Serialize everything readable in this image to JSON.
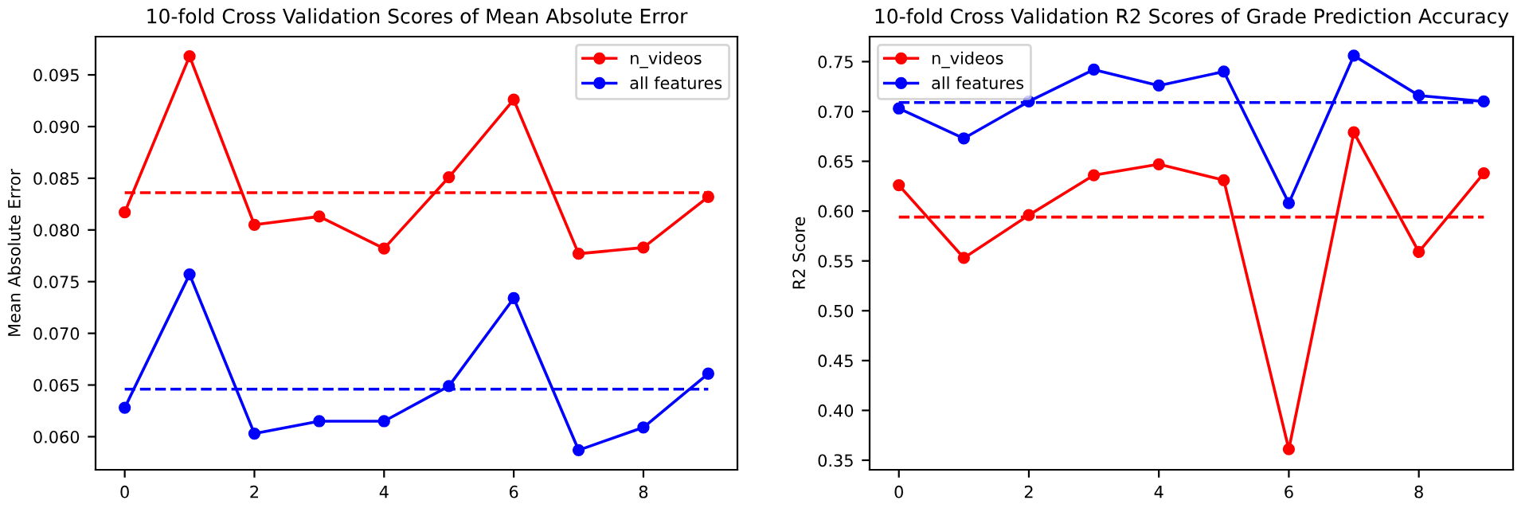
{
  "chart_data": [
    {
      "type": "line",
      "title": "10-fold Cross Validation Scores of Mean Absolute Error",
      "ylabel": "Mean Absolute Error",
      "x": [
        0,
        1,
        2,
        3,
        4,
        5,
        6,
        7,
        8,
        9
      ],
      "xlim": [
        -0.45,
        9.45
      ],
      "xticks": [
        0,
        2,
        4,
        6,
        8
      ],
      "ylim": [
        0.0568,
        0.0987
      ],
      "yticks": [
        {
          "value": 0.06,
          "label": "0.060"
        },
        {
          "value": 0.065,
          "label": "0.065"
        },
        {
          "value": 0.07,
          "label": "0.070"
        },
        {
          "value": 0.075,
          "label": "0.075"
        },
        {
          "value": 0.08,
          "label": "0.080"
        },
        {
          "value": 0.085,
          "label": "0.085"
        },
        {
          "value": 0.09,
          "label": "0.090"
        },
        {
          "value": 0.095,
          "label": "0.095"
        }
      ],
      "marker": "circle",
      "line_style": "solid",
      "legend": "top right",
      "grid": false,
      "series": [
        {
          "name": "n_videos",
          "color": "#ff0000",
          "values": [
            0.0817,
            0.0968,
            0.0805,
            0.0813,
            0.0782,
            0.0851,
            0.0926,
            0.0777,
            0.0783,
            0.0832
          ]
        },
        {
          "name": "all features",
          "color": "#0000ff",
          "values": [
            0.0628,
            0.0757,
            0.0603,
            0.0615,
            0.0615,
            0.0649,
            0.0734,
            0.0587,
            0.0609,
            0.0661
          ]
        }
      ],
      "ref_lines": [
        {
          "axis": "y",
          "value": 0.0836,
          "color": "#ff0000",
          "line_style": "dashed"
        },
        {
          "axis": "y",
          "value": 0.0646,
          "color": "#0000ff",
          "line_style": "dashed"
        }
      ]
    },
    {
      "type": "line",
      "title": "10-fold Cross Validation R2 Scores of Grade Prediction Accuracy",
      "ylabel": "R2 Score",
      "x": [
        0,
        1,
        2,
        3,
        4,
        5,
        6,
        7,
        8,
        9
      ],
      "xlim": [
        -0.45,
        9.45
      ],
      "xticks": [
        0,
        2,
        4,
        6,
        8
      ],
      "ylim": [
        0.3404,
        0.7751
      ],
      "yticks": [
        {
          "value": 0.35,
          "label": "0.35"
        },
        {
          "value": 0.4,
          "label": "0.40"
        },
        {
          "value": 0.45,
          "label": "0.45"
        },
        {
          "value": 0.5,
          "label": "0.50"
        },
        {
          "value": 0.55,
          "label": "0.55"
        },
        {
          "value": 0.6,
          "label": "0.60"
        },
        {
          "value": 0.65,
          "label": "0.65"
        },
        {
          "value": 0.7,
          "label": "0.70"
        },
        {
          "value": 0.75,
          "label": "0.75"
        }
      ],
      "marker": "circle",
      "line_style": "solid",
      "legend": "top left",
      "grid": false,
      "series": [
        {
          "name": "n_videos",
          "color": "#ff0000",
          "values": [
            0.626,
            0.553,
            0.596,
            0.636,
            0.647,
            0.631,
            0.361,
            0.679,
            0.559,
            0.638
          ]
        },
        {
          "name": "all features",
          "color": "#0000ff",
          "values": [
            0.703,
            0.673,
            0.71,
            0.742,
            0.726,
            0.74,
            0.608,
            0.756,
            0.716,
            0.71
          ]
        }
      ],
      "ref_lines": [
        {
          "axis": "y",
          "value": 0.594,
          "color": "#ff0000",
          "line_style": "dashed"
        },
        {
          "axis": "y",
          "value": 0.709,
          "color": "#0000ff",
          "line_style": "dashed"
        }
      ]
    }
  ]
}
